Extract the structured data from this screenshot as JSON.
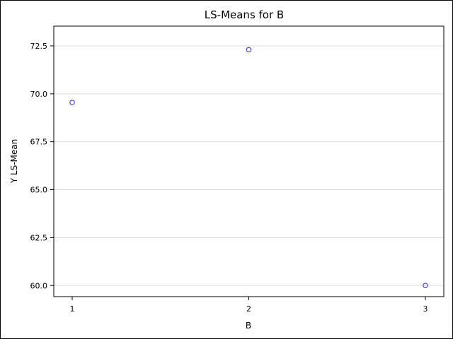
{
  "chart_data": {
    "type": "scatter",
    "title": "LS-Means for B",
    "xlabel": "B",
    "ylabel": "Y LS-Mean",
    "categories": [
      "1",
      "2",
      "3"
    ],
    "values": [
      69.55,
      72.3,
      60.0
    ],
    "yticks": [
      60.0,
      62.5,
      65.0,
      67.5,
      70.0,
      72.5
    ],
    "ytick_labels": [
      "60.0",
      "62.5",
      "65.0",
      "67.5",
      "70.0",
      "72.5"
    ],
    "ylim": [
      59.42,
      73.53
    ],
    "grid": true,
    "marker_color": "#2a25d9"
  }
}
